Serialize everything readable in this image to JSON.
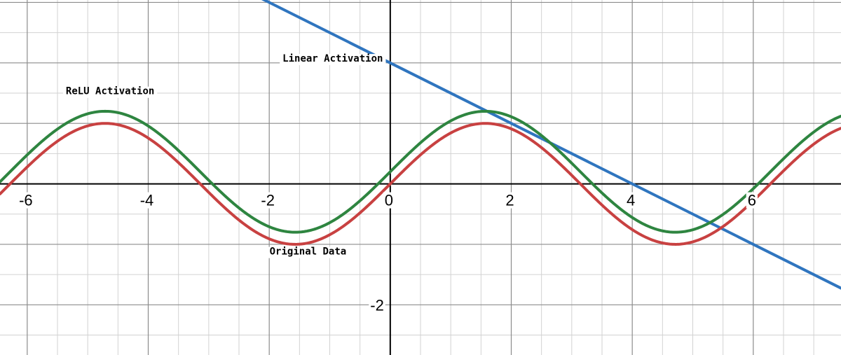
{
  "chart_data": {
    "type": "line",
    "title": "",
    "xlabel": "",
    "ylabel": "",
    "xlim": [
      -6.45,
      7.45
    ],
    "ylim": [
      -2.83,
      3.04
    ],
    "grid": true,
    "minor_grid_step": 0.5,
    "x_ticks": [
      -6,
      -4,
      -2,
      0,
      2,
      4,
      6
    ],
    "x_tick_labels": [
      "-6",
      "-4",
      "-2",
      "0",
      "2",
      "4",
      "6"
    ],
    "y_ticks": [
      -2
    ],
    "y_tick_labels": [
      "-2"
    ],
    "series": [
      {
        "name": "Original Data",
        "function": "sin(x)",
        "color": "#c84141"
      },
      {
        "name": "ReLU Activation",
        "function": "sin(x) + 0.2",
        "color": "#2e8540"
      },
      {
        "name": "Linear Activation",
        "function": "-0.5*x + 2",
        "color": "#2f75bf"
      }
    ],
    "annotations": [
      {
        "text": "Linear Activation",
        "series": "Linear Activation",
        "x": -0.95,
        "y": 2.02
      },
      {
        "text": "ReLU Activation",
        "series": "ReLU Activation",
        "x": -4.63,
        "y": 1.48
      },
      {
        "text": "Original Data",
        "series": "Original Data",
        "x": -1.36,
        "y": -1.17
      }
    ]
  }
}
